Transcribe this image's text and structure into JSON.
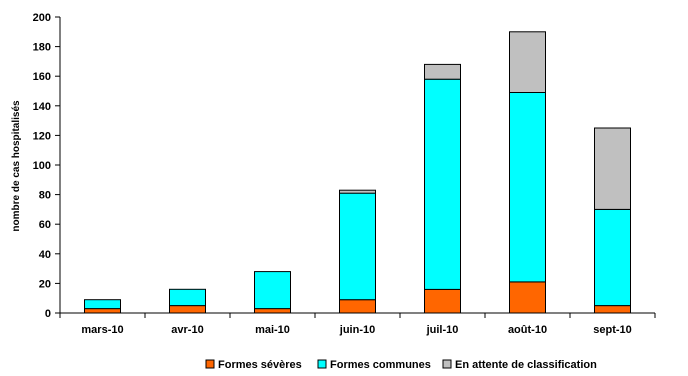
{
  "chart_data": {
    "type": "bar",
    "stacked": true,
    "title": "",
    "xlabel": "",
    "ylabel": "nombre de cas hospitalisés",
    "ylim": [
      0,
      200
    ],
    "yticks": [
      "0",
      "20",
      "40",
      "60",
      "80",
      "100",
      "120",
      "140",
      "160",
      "180",
      "200"
    ],
    "grid": false,
    "legend_position": "bottom",
    "categories": [
      "mars-10",
      "avr-10",
      "mai-10",
      "juin-10",
      "juil-10",
      "août-10",
      "sept-10"
    ],
    "series": [
      {
        "name": "Formes sévères",
        "color": "#ff6600",
        "values": [
          3,
          5,
          3,
          9,
          16,
          21,
          5
        ]
      },
      {
        "name": "Formes communes",
        "color": "#00ffff",
        "values": [
          6,
          11,
          25,
          72,
          142,
          128,
          65
        ]
      },
      {
        "name": "En attente de classification",
        "color": "#c0c0c0",
        "values": [
          0,
          0,
          0,
          2,
          10,
          41,
          55
        ]
      }
    ]
  }
}
